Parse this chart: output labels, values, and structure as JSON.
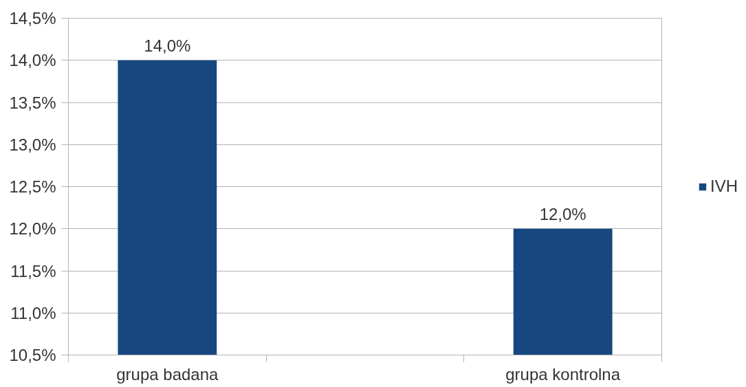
{
  "chart_data": {
    "type": "bar",
    "categories": [
      "grupa badana",
      "grupa kontrolna"
    ],
    "series": [
      {
        "name": "IVH",
        "color": "#17477f",
        "values": [
          14.0,
          12.0
        ],
        "value_labels": [
          "14,0%",
          "12,0%"
        ]
      }
    ],
    "ylim": [
      10.5,
      14.5
    ],
    "yticks": [
      {
        "value": 10.5,
        "label": "10,5%"
      },
      {
        "value": 11.0,
        "label": "11,0%"
      },
      {
        "value": 11.5,
        "label": "11,5%"
      },
      {
        "value": 12.0,
        "label": "12,0%"
      },
      {
        "value": 12.5,
        "label": "12,5%"
      },
      {
        "value": 13.0,
        "label": "13,0%"
      },
      {
        "value": 13.5,
        "label": "13,5%"
      },
      {
        "value": 14.0,
        "label": "14,0%"
      },
      {
        "value": 14.5,
        "label": "14,5%"
      }
    ],
    "grid": "y",
    "legend": "right"
  }
}
